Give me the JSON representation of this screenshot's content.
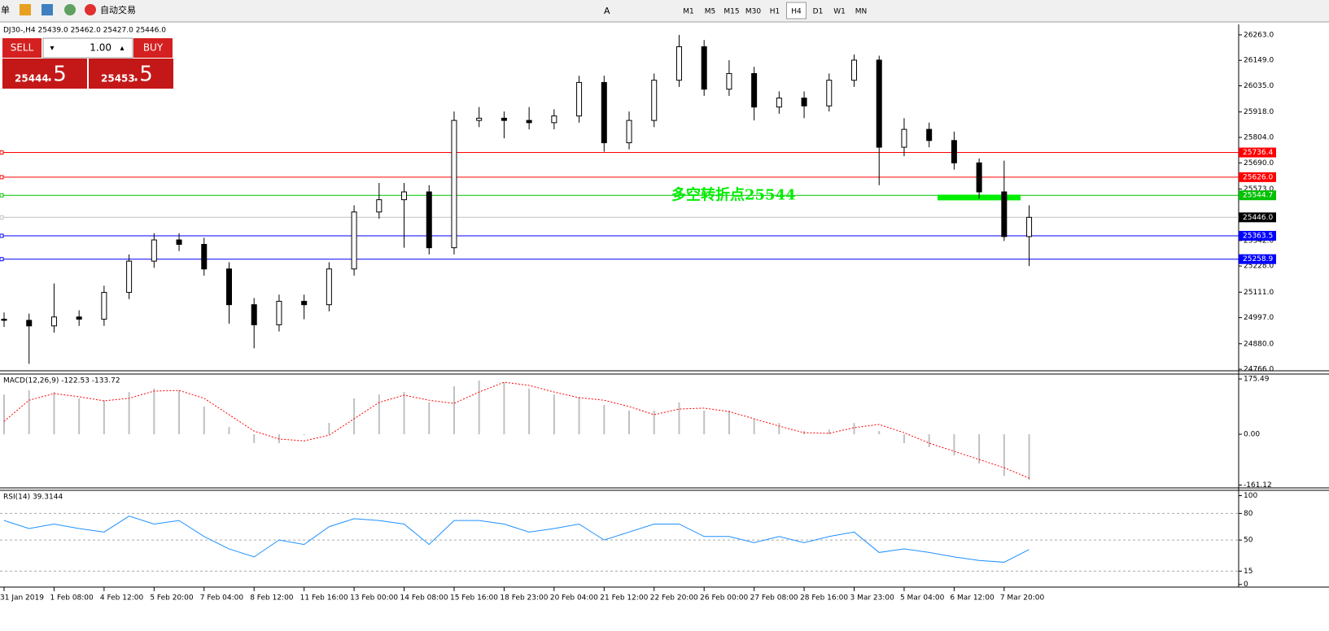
{
  "toolbar": {
    "menu_fragment": "单",
    "auto_trade": "自动交易",
    "text_tool": "A",
    "timeframes": [
      "M1",
      "M5",
      "M15",
      "M30",
      "H1",
      "H4",
      "D1",
      "W1",
      "MN"
    ],
    "active_timeframe": "H4"
  },
  "trade_panel": {
    "sell": "SELL",
    "buy": "BUY",
    "lots": "1.00",
    "bid_main": "25444",
    "bid_fraction": ".5",
    "ask_main": "25453",
    "ask_fraction": ".5"
  },
  "chart_data": [
    {
      "type": "candlestick",
      "title": "DJ30-,H4  25439.0 25462.0 25427.0 25446.0",
      "x": [
        0,
        4,
        8,
        12,
        16,
        20,
        24,
        28,
        32,
        36,
        40,
        44,
        48,
        52,
        56,
        60,
        64,
        68,
        72,
        76,
        80,
        84,
        88,
        92,
        96,
        100,
        104,
        108,
        112,
        116,
        120,
        124,
        128,
        132,
        136,
        140,
        144,
        148,
        152,
        156,
        160,
        164
      ],
      "open": [
        24990,
        24985,
        24960,
        25000,
        24990,
        25110,
        25250,
        25345,
        25325,
        25215,
        25055,
        24965,
        25070,
        25055,
        25215,
        25470,
        25525,
        25560,
        25310,
        25880,
        25890,
        25880,
        25870,
        25900,
        26050,
        25780,
        25880,
        26060,
        26210,
        26020,
        26090,
        25940,
        25980,
        25945,
        26060,
        26150,
        25760,
        25840,
        25790,
        25690,
        25560,
        25360
      ],
      "high": [
        25020,
        25015,
        25150,
        25030,
        25140,
        25280,
        25375,
        25375,
        25355,
        25245,
        25085,
        25100,
        25100,
        25245,
        25500,
        25600,
        25600,
        25590,
        25920,
        25940,
        25920,
        25940,
        25930,
        26080,
        26080,
        25920,
        26090,
        26263,
        26240,
        26150,
        26120,
        26010,
        26010,
        26090,
        26175,
        26170,
        25890,
        25870,
        25830,
        25710,
        25700,
        25500
      ],
      "low": [
        24955,
        24790,
        24930,
        24960,
        24960,
        25080,
        25220,
        25295,
        25185,
        24970,
        24860,
        24935,
        24990,
        25025,
        25185,
        25440,
        25310,
        25280,
        25280,
        25850,
        25800,
        25840,
        25840,
        25870,
        25740,
        25750,
        25850,
        26030,
        25990,
        25990,
        25880,
        25910,
        25890,
        25920,
        26030,
        25590,
        25720,
        25760,
        25660,
        25530,
        25340,
        25228
      ],
      "close": [
        24985,
        24960,
        25000,
        24990,
        25110,
        25250,
        25345,
        25325,
        25215,
        25055,
        24965,
        25070,
        25055,
        25215,
        25470,
        25525,
        25560,
        25310,
        25880,
        25890,
        25880,
        25870,
        25900,
        26050,
        25780,
        25880,
        26060,
        26210,
        26020,
        26090,
        25940,
        25980,
        25945,
        26060,
        26150,
        25760,
        25840,
        25790,
        25690,
        25560,
        25360,
        25446
      ],
      "up_color": "#ffffff",
      "down_color": "#000000",
      "outline_color": "#000000",
      "xlim": [
        0,
        197
      ],
      "ylim": [
        24759,
        26310
      ],
      "yticks": [
        {
          "value": 26263,
          "label": "26263.0"
        },
        {
          "value": 26149,
          "label": "26149.0"
        },
        {
          "value": 26035,
          "label": "26035.0"
        },
        {
          "value": 25918,
          "label": "25918.0"
        },
        {
          "value": 25804,
          "label": "25804.0"
        },
        {
          "value": 25690,
          "label": "25690.0"
        },
        {
          "value": 25573,
          "label": "25573.0"
        },
        {
          "value": 25342,
          "label": "25342.0"
        },
        {
          "value": 25228,
          "label": "25228.0"
        },
        {
          "value": 25111,
          "label": "25111.0"
        },
        {
          "value": 24997,
          "label": "24997.0"
        },
        {
          "value": 24880,
          "label": "24880.0"
        },
        {
          "value": 24766,
          "label": "24766.0"
        }
      ],
      "xticks": [
        {
          "value": 0,
          "label": "31 Jan 2019"
        },
        {
          "value": 8,
          "label": "1 Feb 08:00"
        },
        {
          "value": 16,
          "label": "4 Feb 12:00"
        },
        {
          "value": 24,
          "label": "5 Feb 20:00"
        },
        {
          "value": 32,
          "label": "7 Feb 04:00"
        },
        {
          "value": 40,
          "label": "8 Feb 12:00"
        },
        {
          "value": 48,
          "label": "11 Feb 16:00"
        },
        {
          "value": 56,
          "label": "13 Feb 00:00"
        },
        {
          "value": 64,
          "label": "14 Feb 08:00"
        },
        {
          "value": 72,
          "label": "15 Feb 16:00"
        },
        {
          "value": 80,
          "label": "18 Feb 23:00"
        },
        {
          "value": 88,
          "label": "20 Feb 04:00"
        },
        {
          "value": 96,
          "label": "21 Feb 12:00"
        },
        {
          "value": 104,
          "label": "22 Feb 20:00"
        },
        {
          "value": 112,
          "label": "26 Feb 00:00"
        },
        {
          "value": 120,
          "label": "27 Feb 08:00"
        },
        {
          "value": 128,
          "label": "28 Feb 16:00"
        },
        {
          "value": 136,
          "label": "3 Mar 23:00"
        },
        {
          "value": 144,
          "label": "5 Mar 04:00"
        },
        {
          "value": 152,
          "label": "6 Mar 12:00"
        },
        {
          "value": 160,
          "label": "7 Mar 20:00"
        }
      ],
      "levels": [
        {
          "value": 25736.4,
          "label": "25736.4",
          "color": "#ff0000",
          "box": "#ff0000"
        },
        {
          "value": 25626.0,
          "label": "25626.0",
          "color": "#ff0000",
          "box": "#ff0000"
        },
        {
          "value": 25544.7,
          "label": "25544.7",
          "color": "#00c000",
          "box": "#00c000"
        },
        {
          "value": 25446.0,
          "label": "25446.0",
          "color": "#c0c0c0",
          "box": "#000000"
        },
        {
          "value": 25363.5,
          "label": "25363.5",
          "color": "#0000ff",
          "box": "#0000ff"
        },
        {
          "value": 25258.9,
          "label": "25258.9",
          "color": "#0000ff",
          "box": "#0000ff"
        }
      ],
      "annotation": {
        "text": "多空转折点25544",
        "value": 25544,
        "color": "#00ee00"
      }
    },
    {
      "type": "macd",
      "title": "MACD(12,26,9) -122.53 -133.72",
      "histogram_color": "#c0c0c0",
      "signal_color": "#ff0000",
      "histogram": [
        126,
        139,
        134,
        114,
        108,
        134,
        145,
        139,
        88,
        23,
        -28,
        -28,
        -3,
        36,
        114,
        126,
        134,
        101,
        152,
        170,
        165,
        145,
        126,
        119,
        93,
        75,
        75,
        101,
        75,
        75,
        49,
        36,
        10,
        15,
        36,
        10,
        -28,
        -41,
        -67,
        -93,
        -132,
        -145
      ],
      "signal": [
        41,
        108,
        129,
        119,
        106,
        114,
        137,
        139,
        114,
        62,
        10,
        -15,
        -21,
        -3,
        49,
        101,
        124,
        108,
        98,
        134,
        165,
        155,
        134,
        116,
        108,
        88,
        62,
        80,
        83,
        72,
        49,
        26,
        5,
        3,
        21,
        31,
        5,
        -28,
        -54,
        -80,
        -106,
        -139
      ],
      "ylim": [
        -170,
        191
      ],
      "yticks": [
        175.49,
        {
          "value": 0,
          "label": "0.00"
        },
        -161.12
      ]
    },
    {
      "type": "rsi",
      "title": "RSI(14) 39.3144",
      "color": "#1e90ff",
      "values": [
        72,
        63,
        68,
        63,
        59,
        77,
        68,
        72,
        54,
        40,
        31,
        50,
        45,
        65,
        74,
        72,
        68,
        45,
        72,
        72,
        68,
        59,
        63,
        68,
        50,
        59,
        68,
        68,
        54,
        54,
        47,
        54,
        47,
        54,
        59,
        36,
        40,
        36,
        31,
        27,
        25,
        39.3144
      ],
      "ylim": [
        -3,
        106
      ],
      "yticks": [
        0,
        15,
        50,
        80,
        100
      ]
    }
  ]
}
